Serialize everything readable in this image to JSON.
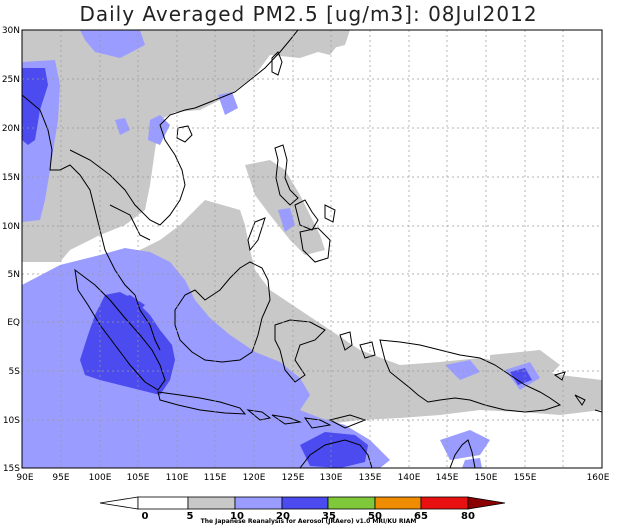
{
  "title": "Daily Averaged PM2.5 [ug/m3]: 08Jul2012",
  "lat_labels": [
    "30N",
    "25N",
    "20N",
    "15N",
    "10N",
    "5N",
    "EQ",
    "5S",
    "10S",
    "15S"
  ],
  "lon_labels": [
    "90E",
    "95E",
    "100E",
    "105E",
    "110E",
    "115E",
    "120E",
    "125E",
    "130E",
    "135E",
    "140E",
    "145E",
    "150E",
    "155E",
    "160E"
  ],
  "colorbar": {
    "levels": [
      "0",
      "5",
      "10",
      "20",
      "35",
      "50",
      "65",
      "80"
    ],
    "colors": [
      "#ffffff",
      "#ffffff",
      "#c8c8c8",
      "#9a9cff",
      "#4b4bef",
      "#7ec83a",
      "#f08c00",
      "#e81010",
      "#8b0000"
    ]
  },
  "credit": "The Japanese Reanalysis for Aerosol (JRAero) v1.0 MRI/KU RIAM"
}
